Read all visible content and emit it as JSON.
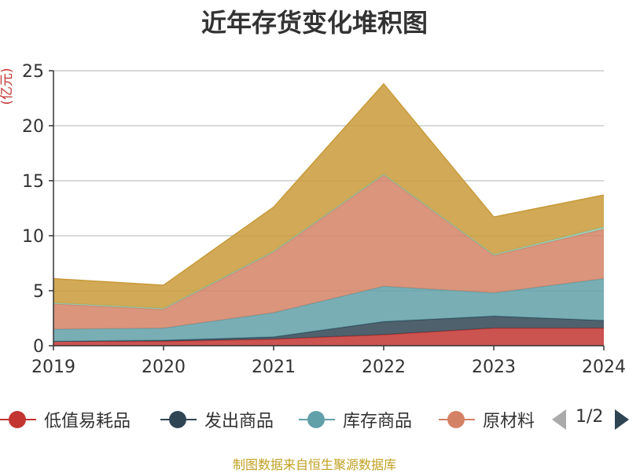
{
  "page": {
    "title": "近年存货变化堆积图",
    "source_note": "制图数据来自恒生聚源数据库"
  },
  "legend": {
    "pager": {
      "page_text": "1/2"
    }
  },
  "chart_data": {
    "type": "area",
    "stacked": true,
    "title": "近年存货变化堆积图",
    "ylabel": "(亿元)",
    "xlabel": "",
    "categories": [
      "2019",
      "2020",
      "2021",
      "2022",
      "2023",
      "2024"
    ],
    "ylim": [
      0,
      25
    ],
    "yticks": [
      0,
      5,
      10,
      15,
      20,
      25
    ],
    "grid": true,
    "legend_position": "bottom",
    "series": [
      {
        "name": "低值易耗品",
        "color": "#c23531",
        "values": [
          0.4,
          0.4,
          0.6,
          1.0,
          1.6,
          1.6
        ]
      },
      {
        "name": "发出商品",
        "color": "#2f4554",
        "values": [
          0.0,
          0.1,
          0.2,
          1.2,
          1.1,
          0.7
        ]
      },
      {
        "name": "库存商品",
        "color": "#61a0a8",
        "values": [
          1.1,
          1.1,
          2.2,
          3.2,
          2.1,
          3.8
        ]
      },
      {
        "name": "原材料",
        "color": "#d48265",
        "values": [
          2.3,
          1.7,
          5.5,
          10.1,
          3.4,
          4.5
        ]
      },
      {
        "name": "",
        "color": "#91c7ae",
        "values": [
          0.1,
          0.1,
          0.1,
          0.1,
          0.1,
          0.2
        ]
      },
      {
        "name": "",
        "color": "#c99a3a",
        "values": [
          2.2,
          2.1,
          4.0,
          8.2,
          3.4,
          2.9
        ]
      }
    ],
    "visible_legend_entries": [
      "低值易耗品",
      "发出商品",
      "库存商品",
      "原材料"
    ]
  }
}
